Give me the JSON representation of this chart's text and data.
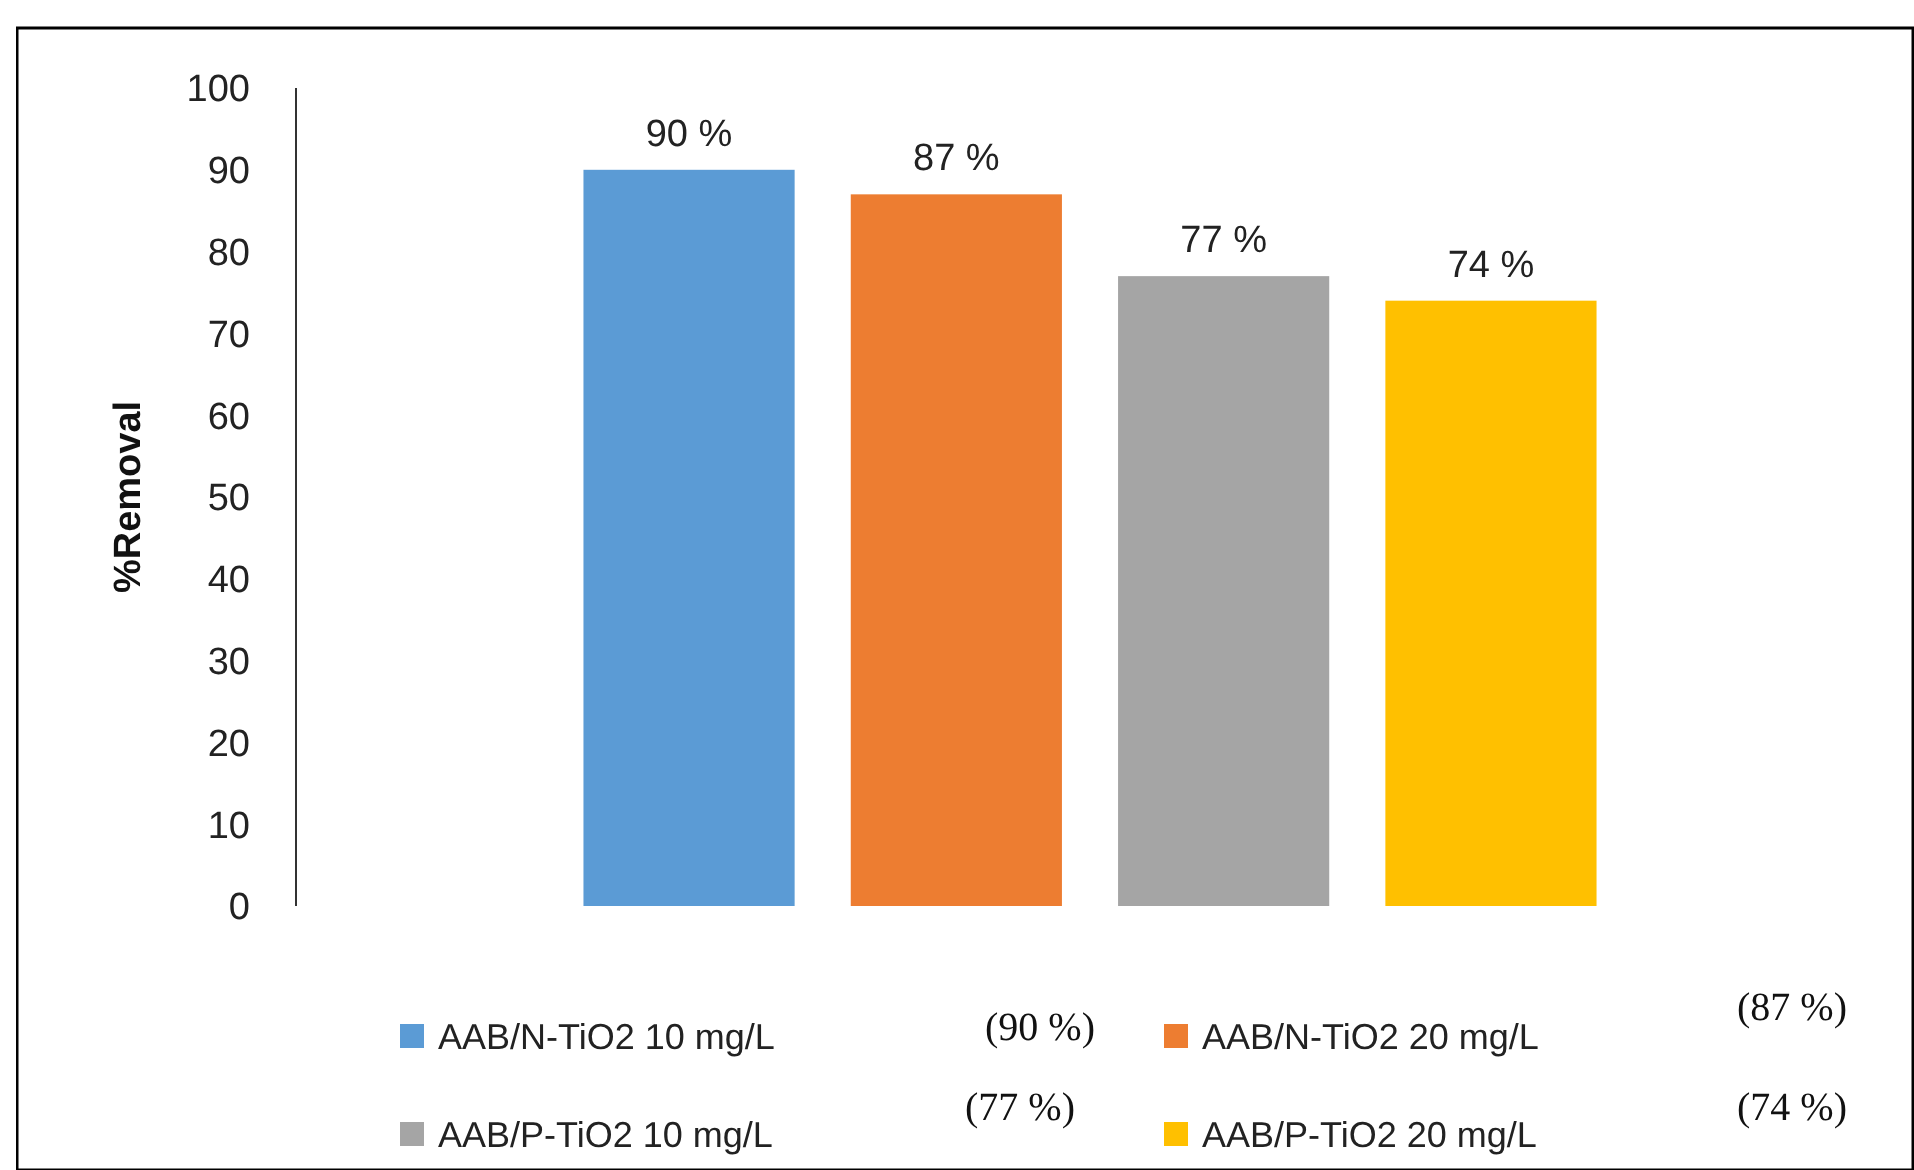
{
  "chart_data": {
    "type": "bar",
    "ylabel": "%Removal",
    "categories": [
      null
    ],
    "series": [
      {
        "name": "AAB/N-TiO2 10 mg/L",
        "color": "#5b9bd5",
        "values": [
          90
        ],
        "value_labels": [
          "90 %"
        ]
      },
      {
        "name": "AAB/N-TiO2 20 mg/L",
        "color": "#ed7d31",
        "values": [
          87
        ],
        "value_labels": [
          "87 %"
        ]
      },
      {
        "name": "AAB/P-TiO2 10 mg/L",
        "color": "#a5a5a5",
        "values": [
          77
        ],
        "value_labels": [
          "77 %"
        ]
      },
      {
        "name": "AAB/P-TiO2 20 mg/L",
        "color": "#ffc000",
        "values": [
          74
        ],
        "value_labels": [
          "74 %"
        ]
      }
    ],
    "ylim": [
      0,
      100
    ],
    "yticks": [
      0,
      10,
      20,
      30,
      40,
      50,
      60,
      70,
      80,
      90,
      100
    ],
    "legend": "bottom",
    "annotations": [
      "(90 %)",
      "(87 %)",
      "(77 %)",
      "(74 %)"
    ]
  }
}
